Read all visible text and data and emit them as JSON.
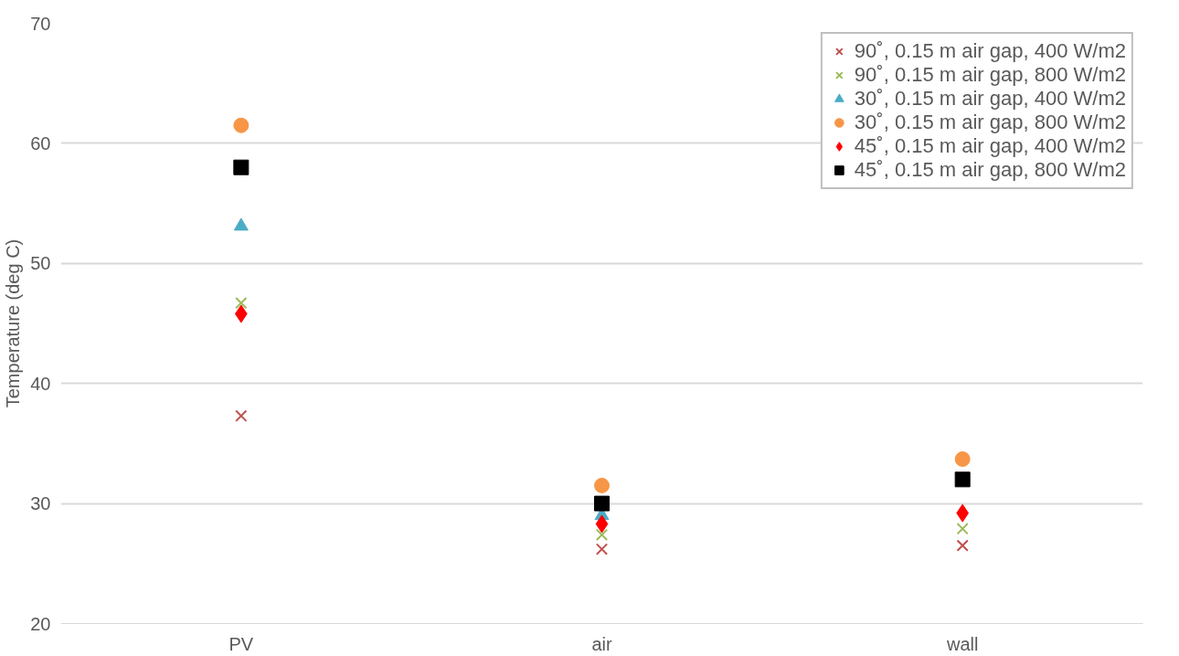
{
  "chart_data": {
    "type": "scatter",
    "ylabel": "Temperature (deg C)",
    "categories": [
      "PV",
      "air",
      "wall"
    ],
    "ylim": [
      20,
      70
    ],
    "yticks": [
      20,
      30,
      40,
      50,
      60,
      70
    ],
    "grid": "y",
    "legend": "top right",
    "series": [
      {
        "name": "90˚, 0.15 m air gap, 400 W/m2",
        "color": "#c0504d",
        "marker": "cross",
        "values": [
          37.3,
          26.2,
          26.5
        ]
      },
      {
        "name": "90˚, 0.15 m air gap, 800 W/m2",
        "color": "#9bbb59",
        "marker": "cross",
        "values": [
          46.7,
          27.4,
          27.9
        ]
      },
      {
        "name": "30˚, 0.15 m air gap, 400 W/m2",
        "color": "#4bacc6",
        "marker": "triangle",
        "values": [
          53.1,
          29.0,
          null
        ]
      },
      {
        "name": "30˚, 0.15 m air gap, 800 W/m2",
        "color": "#f79646",
        "marker": "circle",
        "values": [
          61.5,
          31.5,
          33.7
        ]
      },
      {
        "name": "45˚, 0.15 m air gap, 400 W/m2",
        "color": "#ff0000",
        "marker": "diamond",
        "values": [
          45.8,
          28.3,
          29.2
        ]
      },
      {
        "name": "45˚, 0.15 m air gap, 800 W/m2",
        "color": "#000000",
        "marker": "square",
        "values": [
          58.0,
          30.0,
          32.0
        ]
      }
    ]
  }
}
